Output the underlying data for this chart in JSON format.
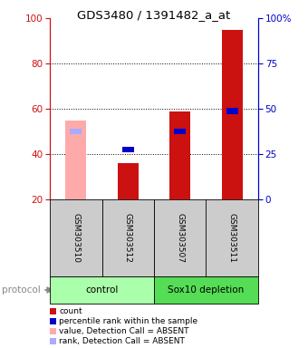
{
  "title": "GDS3480 / 1391482_a_at",
  "samples": [
    "GSM303510",
    "GSM303512",
    "GSM303507",
    "GSM303511"
  ],
  "groups": [
    {
      "label": "control",
      "color": "#aaffaa",
      "start": 0,
      "end": 2
    },
    {
      "label": "Sox10 depletion",
      "color": "#55dd55",
      "start": 2,
      "end": 4
    }
  ],
  "count_values": [
    null,
    36,
    59,
    95
  ],
  "rank_values": [
    null,
    42,
    50,
    59
  ],
  "value_absent": [
    55,
    null,
    null,
    null
  ],
  "rank_absent": [
    50,
    null,
    null,
    null
  ],
  "ylim_left": [
    20,
    100
  ],
  "ylim_right": [
    0,
    100
  ],
  "yticks_left": [
    20,
    40,
    60,
    80,
    100
  ],
  "yticks_right": [
    0,
    25,
    50,
    75,
    100
  ],
  "ytick_right_labels": [
    "0",
    "25",
    "50",
    "75",
    "100%"
  ],
  "grid_lines": [
    40,
    60,
    80
  ],
  "color_count": "#cc1111",
  "color_rank": "#0000cc",
  "color_value_absent": "#ffaaaa",
  "color_rank_absent": "#aaaaff",
  "color_left_axis": "#cc1111",
  "color_right_axis": "#0000cc",
  "bar_width": 0.4,
  "legend_items": [
    {
      "color": "#cc1111",
      "label": "count"
    },
    {
      "color": "#0000cc",
      "label": "percentile rank within the sample"
    },
    {
      "color": "#ffaaaa",
      "label": "value, Detection Call = ABSENT"
    },
    {
      "color": "#aaaaff",
      "label": "rank, Detection Call = ABSENT"
    }
  ]
}
